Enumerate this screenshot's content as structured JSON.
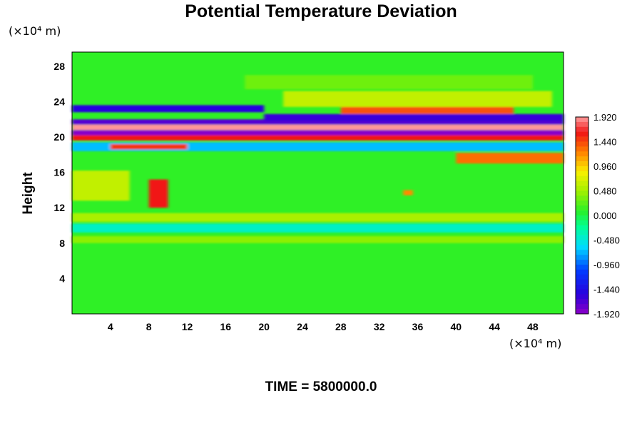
{
  "chart_data": {
    "type": "heatmap",
    "title": "Potential Temperature Deviation",
    "ylabel": "Height",
    "y_unit": "(×10⁴ m)",
    "x_unit": "(×10⁴ m)",
    "xlim": [
      0,
      51.2
    ],
    "ylim": [
      0,
      29.6
    ],
    "x_ticks": [
      "4",
      "8",
      "12",
      "16",
      "20",
      "24",
      "28",
      "32",
      "36",
      "40",
      "44",
      "48"
    ],
    "y_ticks": [
      "4",
      "8",
      "12",
      "16",
      "20",
      "24",
      "28"
    ],
    "x_tick_values": [
      4,
      8,
      12,
      16,
      20,
      24,
      28,
      32,
      36,
      40,
      44,
      48
    ],
    "y_tick_values": [
      4,
      8,
      12,
      16,
      20,
      24,
      28
    ],
    "colorbar": {
      "range": [
        -1.92,
        1.92
      ],
      "labels": [
        "1.920",
        "1.440",
        "0.960",
        "0.480",
        "0.000",
        "-0.480",
        "-0.960",
        "-1.440",
        "-1.920"
      ],
      "label_values": [
        1.92,
        1.44,
        0.96,
        0.48,
        0.0,
        -0.48,
        -0.96,
        -1.44,
        -1.92
      ],
      "levels": 40
    },
    "background_value": 0.1,
    "features": [
      {
        "x0": 0,
        "x1": 51.2,
        "y0": 20.2,
        "y1": 20.8,
        "value": -1.9
      },
      {
        "x0": 0,
        "x1": 51.2,
        "y0": 20.8,
        "y1": 21.4,
        "value": 1.9
      },
      {
        "x0": 0,
        "x1": 51.2,
        "y0": 19.6,
        "y1": 20.2,
        "value": 1.6
      },
      {
        "x0": 0,
        "x1": 51.2,
        "y0": 21.4,
        "y1": 22.0,
        "value": -1.7
      },
      {
        "x0": 0,
        "x1": 20,
        "y0": 22.8,
        "y1": 23.6,
        "value": -1.5
      },
      {
        "x0": 20,
        "x1": 51.2,
        "y0": 21.8,
        "y1": 22.6,
        "value": -1.6
      },
      {
        "x0": 28,
        "x1": 46,
        "y0": 22.6,
        "y1": 23.6,
        "value": 1.4
      },
      {
        "x0": 22,
        "x1": 50,
        "y0": 23.4,
        "y1": 25.2,
        "value": 0.6
      },
      {
        "x0": 18,
        "x1": 48,
        "y0": 25.4,
        "y1": 27.0,
        "value": 0.3
      },
      {
        "x0": 0,
        "x1": 51.2,
        "y0": 18.4,
        "y1": 19.4,
        "value": -0.7
      },
      {
        "x0": 4,
        "x1": 12,
        "y0": 18.6,
        "y1": 19.2,
        "value": 1.5
      },
      {
        "x0": 40,
        "x1": 51.2,
        "y0": 17.0,
        "y1": 18.2,
        "value": 1.3
      },
      {
        "x0": 8,
        "x1": 10,
        "y0": 12.0,
        "y1": 15.2,
        "value": 1.6
      },
      {
        "x0": 0,
        "x1": 6,
        "y0": 12.8,
        "y1": 16.2,
        "value": 0.6
      },
      {
        "x0": 34.5,
        "x1": 35.5,
        "y0": 13.4,
        "y1": 14.0,
        "value": 1.2
      },
      {
        "x0": 0,
        "x1": 51.2,
        "y0": 10.4,
        "y1": 11.4,
        "value": 0.5
      },
      {
        "x0": 0,
        "x1": 51.2,
        "y0": 9.2,
        "y1": 10.2,
        "value": -0.4
      },
      {
        "x0": 0,
        "x1": 51.2,
        "y0": 8.0,
        "y1": 8.8,
        "value": 0.4
      }
    ]
  },
  "time_label": "TIME = 5800000.0"
}
